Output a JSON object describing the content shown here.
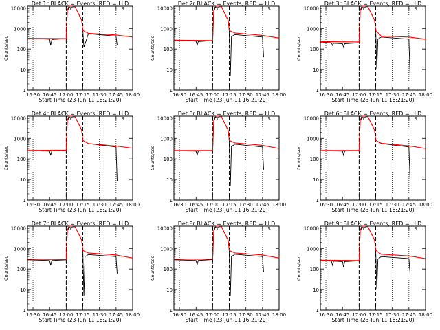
{
  "chart_data": [
    {
      "type": "line",
      "title": "Det 1r BLACK = Events, RED = LLD",
      "xlabel": "Start Time (23-Jun-11 16:21:20)",
      "ylabel": "Counts/sec",
      "y_scale": "log",
      "ylim": [
        1,
        12000
      ],
      "xlim": [
        "16:25",
        "18:00"
      ],
      "x_ticks": [
        "16:30",
        "16:45",
        "17:00",
        "17:15",
        "17:30",
        "17:45",
        "18:00"
      ],
      "y_ticks": [
        "1",
        "10",
        "100",
        "1000",
        "10000"
      ],
      "markers": [
        "D",
        "C",
        "S"
      ],
      "series": [
        {
          "color": "#000000",
          "x": [
            "16:25",
            "16:45",
            "16:46",
            "16:47",
            "17:00",
            "17:01",
            "17:03",
            "17:05",
            "17:08",
            "17:14",
            "17:15",
            "17:16",
            "17:20",
            "17:45",
            "17:46"
          ],
          "y": [
            330,
            300,
            150,
            290,
            320,
            8000,
            12000,
            12000,
            11000,
            2500,
            800,
            120,
            550,
            420,
            150
          ]
        },
        {
          "color": "#ff0000",
          "x": [
            "16:25",
            "17:00",
            "17:01",
            "17:03",
            "17:05",
            "17:08",
            "17:14",
            "17:15",
            "17:20",
            "17:45",
            "18:00"
          ],
          "y": [
            330,
            320,
            8000,
            12000,
            12000,
            11000,
            2500,
            800,
            580,
            480,
            380
          ]
        }
      ]
    },
    {
      "type": "line",
      "title": "Det 2r BLACK = Events, RED = LLD",
      "xlabel": "Start Time (23-Jun-11 16:21:20)",
      "ylabel": "Counts/sec",
      "y_scale": "log",
      "ylim": [
        1,
        12000
      ],
      "xlim": [
        "16:25",
        "18:00"
      ],
      "x_ticks": [
        "16:30",
        "16:45",
        "17:00",
        "17:15",
        "17:30",
        "17:45",
        "18:00"
      ],
      "y_ticks": [
        "1",
        "10",
        "100",
        "1000",
        "10000"
      ],
      "markers": [
        "D",
        "C",
        "S"
      ],
      "series": [
        {
          "color": "#000000",
          "x": [
            "16:25",
            "16:45",
            "16:46",
            "16:47",
            "17:00",
            "17:01",
            "17:03",
            "17:05",
            "17:08",
            "17:14",
            "17:15",
            "17:16",
            "17:17",
            "17:20",
            "17:45",
            "17:46"
          ],
          "y": [
            270,
            240,
            150,
            230,
            260,
            8000,
            12000,
            12000,
            11000,
            2500,
            800,
            5,
            400,
            500,
            380,
            40
          ]
        },
        {
          "color": "#ff0000",
          "x": [
            "16:25",
            "17:00",
            "17:01",
            "17:03",
            "17:05",
            "17:08",
            "17:14",
            "17:15",
            "17:20",
            "17:45",
            "18:00"
          ],
          "y": [
            270,
            260,
            8000,
            12000,
            12000,
            11000,
            2500,
            800,
            600,
            460,
            340
          ]
        }
      ]
    },
    {
      "type": "line",
      "title": "Det 3r BLACK = Events, RED = LLD",
      "xlabel": "Start Time (23-Jun-11 16:21:20)",
      "ylabel": "Counts/sec",
      "y_scale": "log",
      "ylim": [
        1,
        12000
      ],
      "xlim": [
        "16:25",
        "18:00"
      ],
      "x_ticks": [
        "16:30",
        "16:45",
        "17:00",
        "17:15",
        "17:30",
        "17:45",
        "18:00"
      ],
      "y_ticks": [
        "1",
        "10",
        "100",
        "1000",
        "10000"
      ],
      "markers": [
        "D",
        "C",
        "S"
      ],
      "series": [
        {
          "color": "#000000",
          "x": [
            "16:25",
            "16:35",
            "16:36",
            "16:37",
            "16:45",
            "16:46",
            "16:47",
            "17:00",
            "17:01",
            "17:03",
            "17:05",
            "17:08",
            "17:14",
            "17:15",
            "17:16",
            "17:17",
            "17:20",
            "17:45",
            "17:46"
          ],
          "y": [
            220,
            200,
            150,
            190,
            180,
            120,
            180,
            200,
            8000,
            12000,
            12000,
            11000,
            2500,
            800,
            10,
            300,
            380,
            300,
            5
          ]
        },
        {
          "color": "#ff0000",
          "x": [
            "16:25",
            "17:00",
            "17:01",
            "17:03",
            "17:05",
            "17:08",
            "17:14",
            "17:15",
            "17:20",
            "17:45",
            "18:00"
          ],
          "y": [
            230,
            220,
            8000,
            12000,
            12000,
            11000,
            2500,
            800,
            420,
            380,
            300
          ]
        }
      ]
    },
    {
      "type": "line",
      "title": "Det 4r BLACK = Events, RED = LLD",
      "xlabel": "Start Time (23-Jun-11 16:21:20)",
      "ylabel": "Counts/sec",
      "y_scale": "log",
      "ylim": [
        1,
        12000
      ],
      "xlim": [
        "16:25",
        "18:00"
      ],
      "x_ticks": [
        "16:30",
        "16:45",
        "17:00",
        "17:15",
        "17:30",
        "17:45",
        "18:00"
      ],
      "y_ticks": [
        "1",
        "10",
        "100",
        "1000",
        "10000"
      ],
      "markers": [
        "D",
        "C",
        "S"
      ],
      "series": [
        {
          "color": "#000000",
          "x": [
            "16:25",
            "16:45",
            "16:46",
            "16:47",
            "17:00",
            "17:01",
            "17:03",
            "17:05",
            "17:08",
            "17:14",
            "17:15",
            "17:20",
            "17:45",
            "17:46"
          ],
          "y": [
            250,
            240,
            150,
            250,
            270,
            8000,
            12000,
            12000,
            11000,
            2500,
            800,
            550,
            380,
            8
          ]
        },
        {
          "color": "#ff0000",
          "x": [
            "16:25",
            "17:00",
            "17:01",
            "17:03",
            "17:05",
            "17:08",
            "17:14",
            "17:15",
            "17:20",
            "17:45",
            "18:00"
          ],
          "y": [
            260,
            270,
            8000,
            12000,
            12000,
            11000,
            2500,
            800,
            560,
            420,
            330
          ]
        }
      ]
    },
    {
      "type": "line",
      "title": "Det 5r BLACK = Events, RED = LLD",
      "xlabel": "Start Time (23-Jun-11 16:21:20)",
      "ylabel": "Counts/sec",
      "y_scale": "log",
      "ylim": [
        1,
        12000
      ],
      "xlim": [
        "16:25",
        "18:00"
      ],
      "x_ticks": [
        "16:30",
        "16:45",
        "17:00",
        "17:15",
        "17:30",
        "17:45",
        "18:00"
      ],
      "y_ticks": [
        "1",
        "10",
        "100",
        "1000",
        "10000"
      ],
      "markers": [
        "D",
        "C",
        "S"
      ],
      "series": [
        {
          "color": "#000000",
          "x": [
            "16:25",
            "16:45",
            "16:46",
            "16:47",
            "17:00",
            "17:01",
            "17:03",
            "17:05",
            "17:08",
            "17:14",
            "17:15",
            "17:16",
            "17:17",
            "17:20",
            "17:45",
            "17:46"
          ],
          "y": [
            250,
            240,
            150,
            240,
            260,
            8000,
            12000,
            12000,
            11000,
            2500,
            800,
            5,
            400,
            520,
            380,
            30
          ]
        },
        {
          "color": "#ff0000",
          "x": [
            "16:25",
            "17:00",
            "17:01",
            "17:03",
            "17:05",
            "17:08",
            "17:14",
            "17:15",
            "17:20",
            "17:45",
            "18:00"
          ],
          "y": [
            260,
            260,
            8000,
            12000,
            12000,
            11000,
            2500,
            800,
            600,
            460,
            320
          ]
        }
      ]
    },
    {
      "type": "line",
      "title": "Det 6r BLACK = Events, RED = LLD",
      "xlabel": "Start Time (23-Jun-11 16:21:20)",
      "ylabel": "Counts/sec",
      "y_scale": "log",
      "ylim": [
        1,
        12000
      ],
      "xlim": [
        "16:25",
        "18:00"
      ],
      "x_ticks": [
        "16:30",
        "16:45",
        "17:00",
        "17:15",
        "17:30",
        "17:45",
        "18:00"
      ],
      "y_ticks": [
        "1",
        "10",
        "100",
        "1000",
        "10000"
      ],
      "markers": [
        "D",
        "C",
        "S"
      ],
      "series": [
        {
          "color": "#000000",
          "x": [
            "16:25",
            "16:45",
            "16:46",
            "16:47",
            "17:00",
            "17:01",
            "17:03",
            "17:05",
            "17:08",
            "17:14",
            "17:15",
            "17:20",
            "17:45",
            "17:46"
          ],
          "y": [
            250,
            240,
            150,
            240,
            260,
            8000,
            12000,
            12000,
            11000,
            2500,
            800,
            560,
            380,
            8
          ]
        },
        {
          "color": "#ff0000",
          "x": [
            "16:25",
            "17:00",
            "17:01",
            "17:03",
            "17:05",
            "17:08",
            "17:14",
            "17:15",
            "17:20",
            "17:45",
            "18:00"
          ],
          "y": [
            260,
            260,
            8000,
            12000,
            12000,
            11000,
            2500,
            800,
            580,
            430,
            320
          ]
        }
      ]
    },
    {
      "type": "line",
      "title": "Det 7r BLACK = Events, RED = LLD",
      "xlabel": "Start Time (23-Jun-11 16:21:20)",
      "ylabel": "Counts/sec",
      "y_scale": "log",
      "ylim": [
        1,
        12000
      ],
      "xlim": [
        "16:25",
        "18:00"
      ],
      "x_ticks": [
        "16:30",
        "16:45",
        "17:00",
        "17:15",
        "17:30",
        "17:45",
        "18:00"
      ],
      "y_ticks": [
        "1",
        "10",
        "100",
        "1000",
        "10000"
      ],
      "markers": [
        "D",
        "C",
        "S"
      ],
      "series": [
        {
          "color": "#000000",
          "x": [
            "16:25",
            "16:45",
            "16:46",
            "16:47",
            "17:00",
            "17:01",
            "17:03",
            "17:05",
            "17:08",
            "17:14",
            "17:15",
            "17:16",
            "17:17",
            "17:20",
            "17:45",
            "17:46"
          ],
          "y": [
            280,
            260,
            150,
            260,
            280,
            8000,
            12000,
            12000,
            11000,
            2500,
            800,
            5,
            400,
            500,
            400,
            60
          ]
        },
        {
          "color": "#ff0000",
          "x": [
            "16:25",
            "17:00",
            "17:01",
            "17:03",
            "17:05",
            "17:08",
            "17:14",
            "17:15",
            "17:20",
            "17:45",
            "18:00"
          ],
          "y": [
            300,
            290,
            8000,
            12000,
            12000,
            11000,
            2500,
            800,
            600,
            480,
            340
          ]
        }
      ]
    },
    {
      "type": "line",
      "title": "Det 8r BLACK = Events, RED = LLD",
      "xlabel": "Start Time (23-Jun-11 16:21:20)",
      "ylabel": "Counts/sec",
      "y_scale": "log",
      "ylim": [
        1,
        12000
      ],
      "xlim": [
        "16:25",
        "18:00"
      ],
      "x_ticks": [
        "16:30",
        "16:45",
        "17:00",
        "17:15",
        "17:30",
        "17:45",
        "18:00"
      ],
      "y_ticks": [
        "1",
        "10",
        "100",
        "1000",
        "10000"
      ],
      "markers": [
        "D",
        "C",
        "S"
      ],
      "series": [
        {
          "color": "#000000",
          "x": [
            "16:25",
            "16:45",
            "16:46",
            "16:47",
            "17:00",
            "17:01",
            "17:03",
            "17:05",
            "17:08",
            "17:14",
            "17:15",
            "17:16",
            "17:17",
            "17:20",
            "17:45",
            "17:46"
          ],
          "y": [
            280,
            260,
            160,
            260,
            290,
            8000,
            12000,
            12000,
            11000,
            2500,
            800,
            5,
            400,
            520,
            400,
            70
          ]
        },
        {
          "color": "#ff0000",
          "x": [
            "16:25",
            "17:00",
            "17:01",
            "17:03",
            "17:05",
            "17:08",
            "17:14",
            "17:15",
            "17:20",
            "17:45",
            "18:00"
          ],
          "y": [
            300,
            300,
            8000,
            12000,
            12000,
            11000,
            2500,
            800,
            600,
            480,
            340
          ]
        }
      ]
    },
    {
      "type": "line",
      "title": "Det 9r BLACK = Events, RED = LLD",
      "xlabel": "Start Time (23-Jun-11 16:21:20)",
      "ylabel": "Counts/sec",
      "y_scale": "log",
      "ylim": [
        1,
        12000
      ],
      "xlim": [
        "16:25",
        "18:00"
      ],
      "x_ticks": [
        "16:30",
        "16:45",
        "17:00",
        "17:15",
        "17:30",
        "17:45",
        "18:00"
      ],
      "y_ticks": [
        "1",
        "10",
        "100",
        "1000",
        "10000"
      ],
      "markers": [
        "D",
        "C",
        "S"
      ],
      "series": [
        {
          "color": "#000000",
          "x": [
            "16:25",
            "16:35",
            "16:36",
            "16:37",
            "16:45",
            "16:46",
            "16:47",
            "17:00",
            "17:01",
            "17:03",
            "17:05",
            "17:08",
            "17:14",
            "17:15",
            "17:16",
            "17:17",
            "17:20",
            "17:45",
            "17:46"
          ],
          "y": [
            260,
            240,
            150,
            240,
            230,
            120,
            230,
            250,
            8000,
            12000,
            12000,
            11000,
            2500,
            800,
            10,
            300,
            400,
            320,
            60
          ]
        },
        {
          "color": "#ff0000",
          "x": [
            "16:25",
            "17:00",
            "17:01",
            "17:03",
            "17:05",
            "17:08",
            "17:14",
            "17:15",
            "17:20",
            "17:45",
            "18:00"
          ],
          "y": [
            270,
            260,
            8000,
            12000,
            12000,
            11000,
            2500,
            800,
            520,
            430,
            320
          ]
        }
      ]
    }
  ]
}
